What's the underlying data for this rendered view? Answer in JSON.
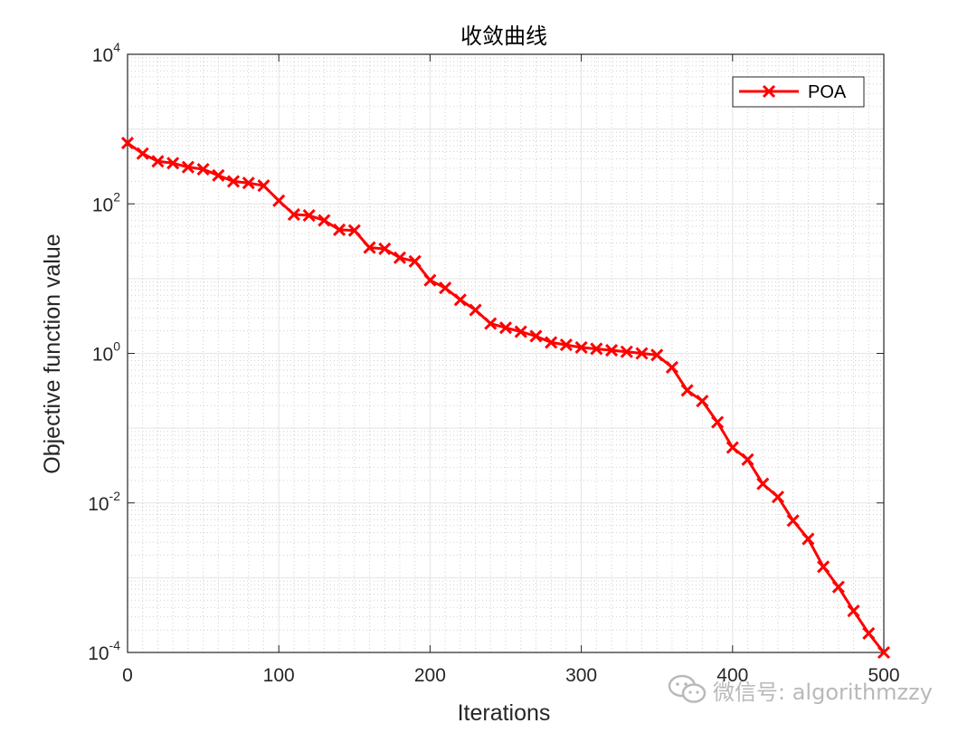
{
  "chart_data": {
    "type": "line",
    "title": "收敛曲线",
    "xlabel": "Iterations",
    "ylabel": "Objective function value",
    "xlim": [
      0,
      500
    ],
    "ylim": [
      0.0001,
      10000
    ],
    "yscale": "log",
    "grid": true,
    "minor_grid": true,
    "legend_position": "top-right",
    "xticks": [
      0,
      100,
      200,
      300,
      400,
      500
    ],
    "xtick_labels": [
      "0",
      "100",
      "200",
      "300",
      "400",
      "500"
    ],
    "ytick_labels": [
      {
        "base": "10",
        "exp": "-4",
        "value": -4
      },
      {
        "base": "10",
        "exp": "-2",
        "value": -2
      },
      {
        "base": "10",
        "exp": "0",
        "value": 0
      },
      {
        "base": "10",
        "exp": "2",
        "value": 2
      },
      {
        "base": "10",
        "exp": "4",
        "value": 4
      }
    ],
    "series": [
      {
        "name": "POA",
        "color": "#ff0000",
        "marker": "x",
        "x": [
          0,
          10,
          20,
          30,
          40,
          50,
          60,
          70,
          80,
          90,
          100,
          110,
          120,
          130,
          140,
          150,
          160,
          170,
          180,
          190,
          200,
          210,
          220,
          230,
          240,
          250,
          260,
          270,
          280,
          290,
          300,
          310,
          320,
          330,
          340,
          350,
          360,
          370,
          380,
          390,
          400,
          410,
          420,
          430,
          440,
          450,
          460,
          470,
          480,
          490,
          500
        ],
        "y": [
          650,
          470,
          370,
          350,
          310,
          290,
          240,
          200,
          190,
          175,
          110,
          72,
          70,
          60,
          45,
          44,
          26,
          25,
          19,
          17,
          9.5,
          7.5,
          5.2,
          3.8,
          2.5,
          2.2,
          1.95,
          1.7,
          1.4,
          1.3,
          1.2,
          1.15,
          1.1,
          1.05,
          1.0,
          0.95,
          0.65,
          0.32,
          0.23,
          0.12,
          0.055,
          0.038,
          0.018,
          0.012,
          0.0058,
          0.0033,
          0.0014,
          0.00075,
          0.00036,
          0.00018,
          0.0001
        ]
      }
    ]
  },
  "watermark": {
    "text": "微信号: algorithmzzy",
    "icon": "wechat-icon"
  }
}
